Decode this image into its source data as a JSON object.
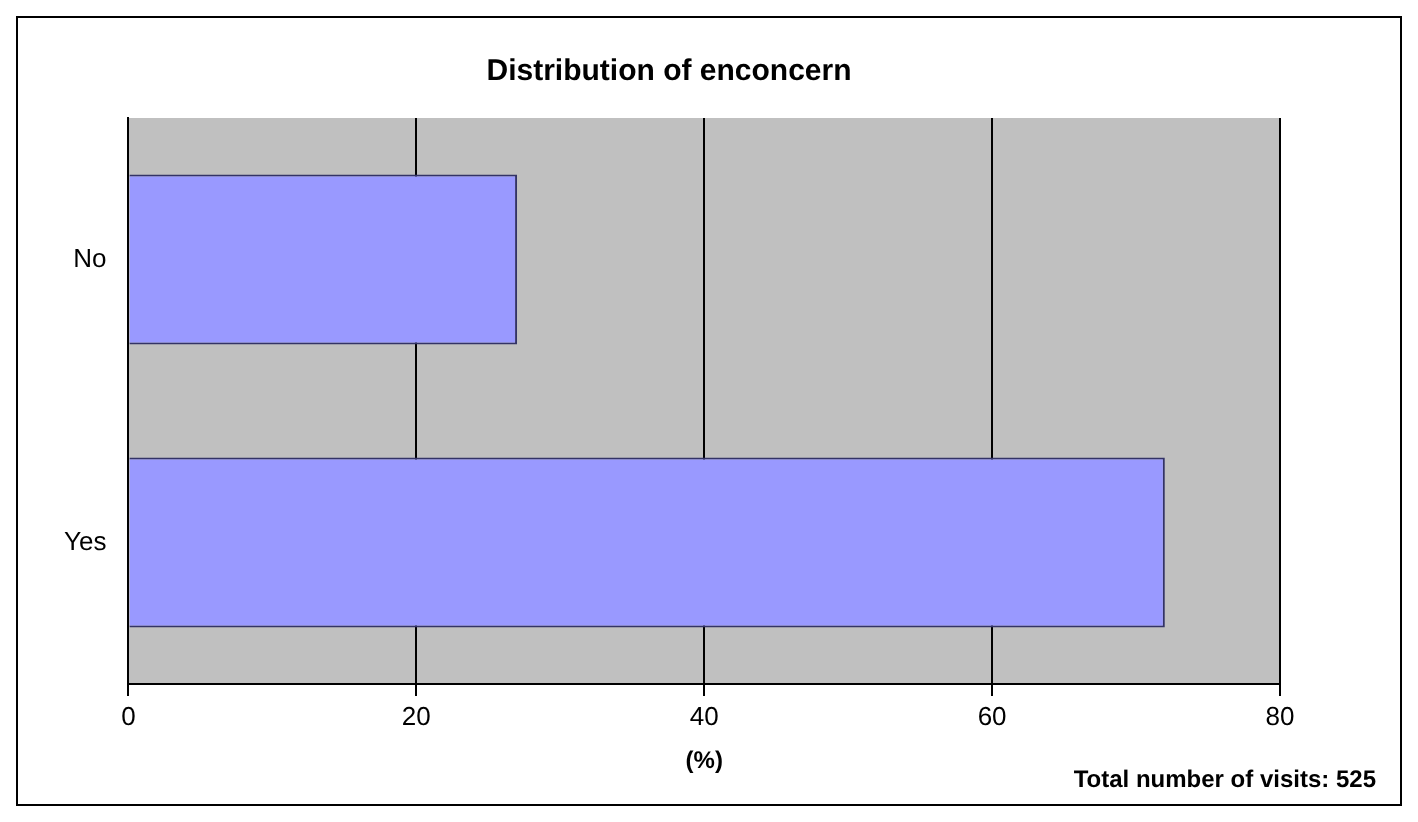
{
  "chart_data": {
    "type": "bar",
    "orientation": "horizontal",
    "title": "Distribution of enconcern",
    "xlabel": "(%)",
    "categories": [
      "No",
      "Yes"
    ],
    "values": [
      27,
      72
    ],
    "color": "#9999ff",
    "xlim": [
      0,
      80
    ],
    "xticks": [
      0,
      20,
      40,
      60,
      80
    ],
    "grid": "x",
    "legend": false,
    "annotations": [
      "Total number of visits: 525"
    ]
  }
}
